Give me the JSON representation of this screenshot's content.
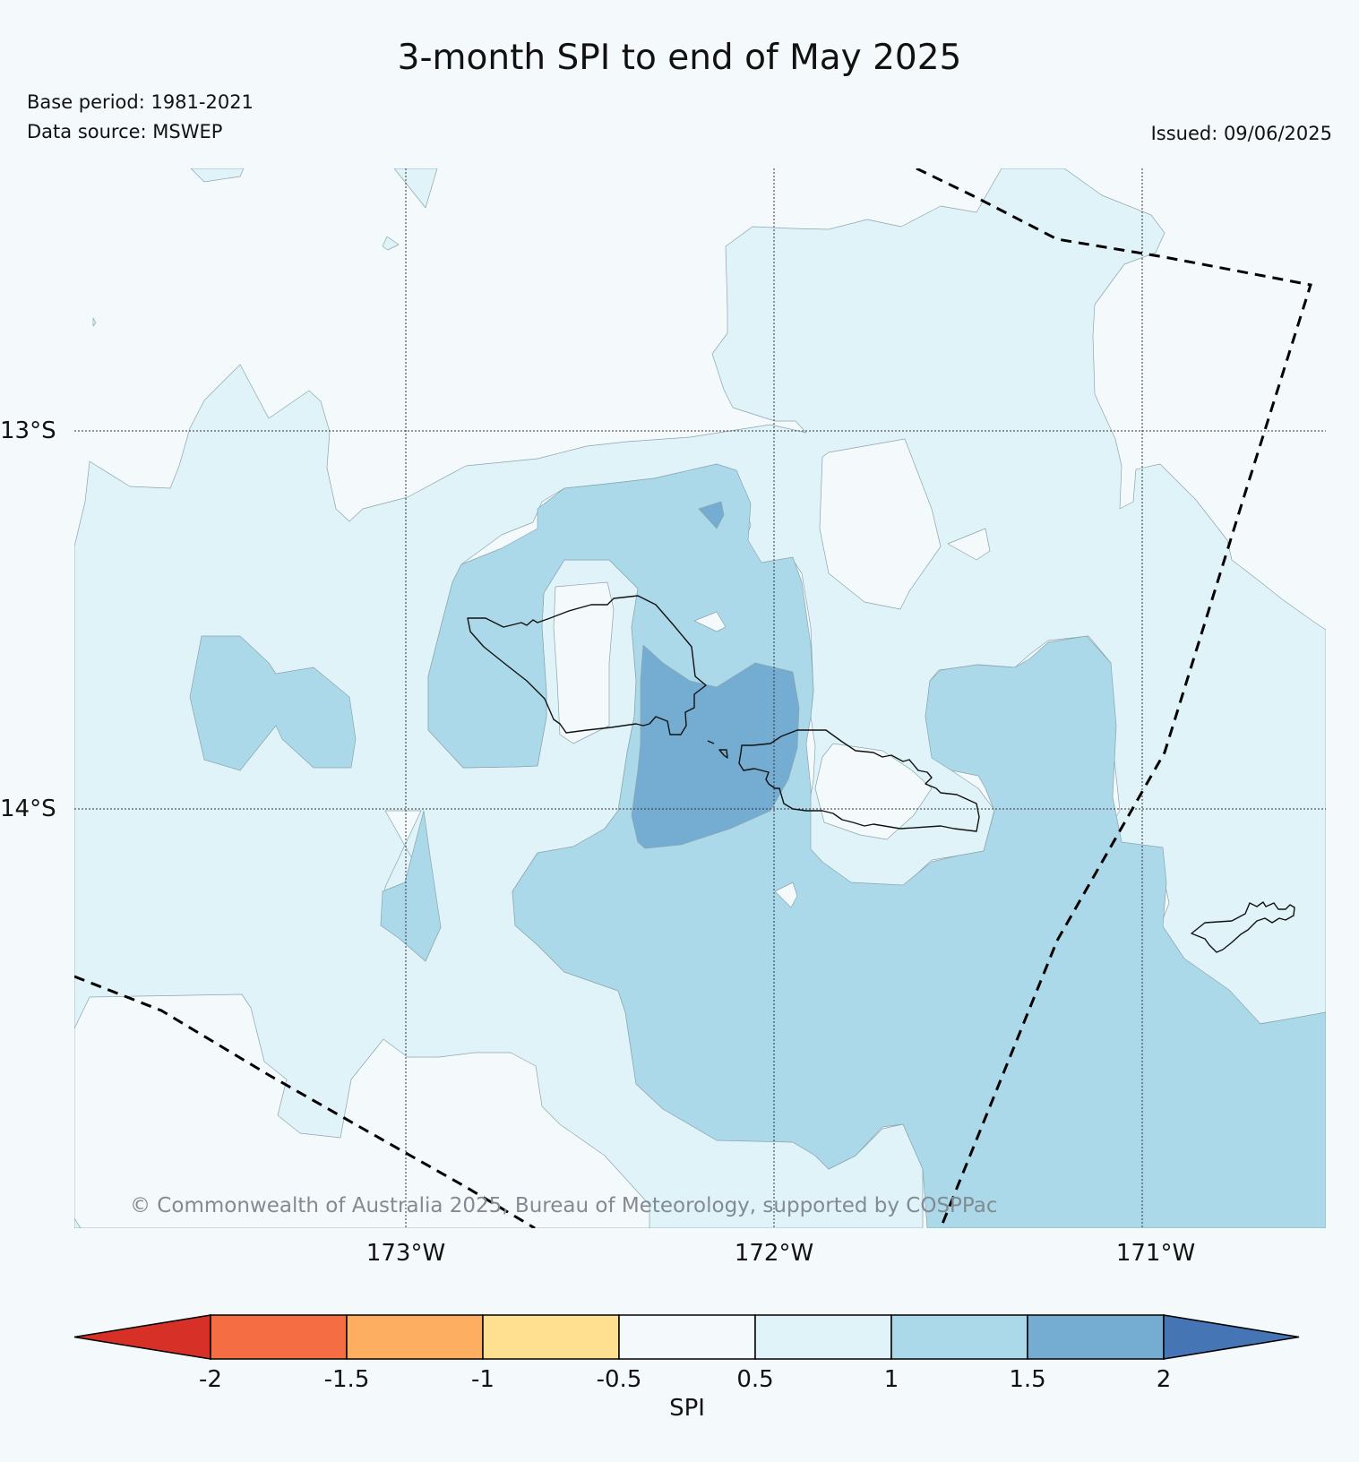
{
  "title": "3-month SPI to end of May 2025",
  "base_period": "Base period: 1981-2021",
  "data_source": "Data source: MSWEP",
  "issued": "Issued: 09/06/2025",
  "copyright": "© Commonwealth of Australia 2025, Bureau of Meteorology, supported by COSPPac",
  "lat_labels": [
    "13°S",
    "14°S"
  ],
  "lon_labels": [
    "173°W",
    "172°W",
    "171°W"
  ],
  "colorbar": {
    "label": "SPI",
    "ticks": [
      "-2",
      "-1.5",
      "-1",
      "-0.5",
      "0.5",
      "1",
      "1.5",
      "2"
    ],
    "extend_low_color": "#d73027",
    "extend_high_color": "#4575b4",
    "segments": [
      {
        "range": "-2 to -1.5",
        "color": "#f46d43"
      },
      {
        "range": "-1.5 to -1",
        "color": "#fdae61"
      },
      {
        "range": "-1 to -0.5",
        "color": "#fee090"
      },
      {
        "range": "-0.5 to 0.5",
        "color": "#f4f9fc"
      },
      {
        "range": "0.5 to 1",
        "color": "#e0f3f8"
      },
      {
        "range": "1 to 1.5",
        "color": "#abd9e9"
      },
      {
        "range": "1.5 to 2",
        "color": "#74add1"
      }
    ]
  },
  "colors": {
    "near_normal": "#f4f9fc",
    "spi_0_5_1": "#e0f3f8",
    "spi_1_1_5": "#abd9e9",
    "spi_1_5_2": "#74add1"
  }
}
